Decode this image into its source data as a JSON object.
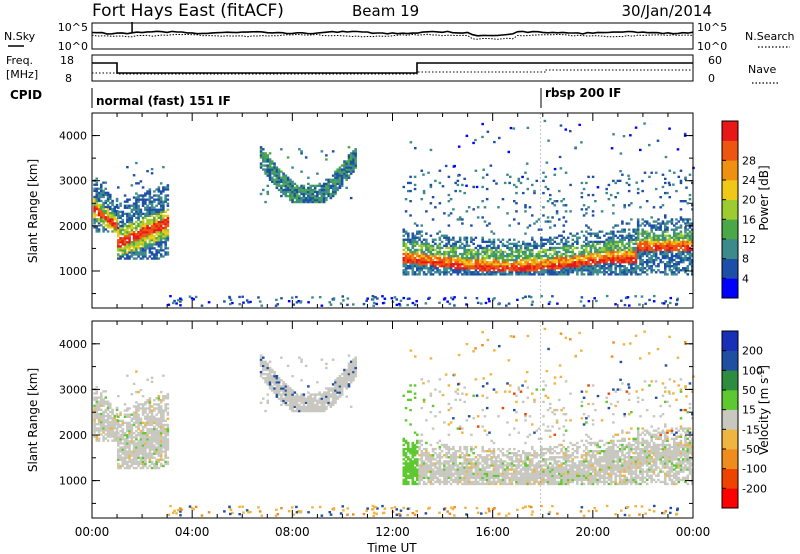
{
  "header": {
    "station": "Fort Hays East (fitACF)",
    "beam": "Beam 19",
    "date": "30/Jan/2014"
  },
  "side_labels": {
    "nsky": "N.Sky",
    "nsearch": "N.Search",
    "freq_line1": "Freq.",
    "freq_line2": "[MHz]",
    "nave": "Nave",
    "cpid": "CPID"
  },
  "strip_ticks": {
    "noise_top_left": "10^5",
    "noise_bottom_left": "10^0",
    "noise_top_right": "10^5",
    "noise_bottom_right": "10^0",
    "freq_top": "18",
    "freq_bottom": "8",
    "nave_top": "60",
    "nave_bottom": "0"
  },
  "cpid": {
    "mode1": "normal (fast) 151 IF",
    "mode2": "rbsp 200 IF"
  },
  "chart_data": [
    {
      "type": "heatmap",
      "title": "",
      "ylabel": "Slant Range [km]",
      "y_ticks": [
        "1000",
        "2000",
        "3000",
        "4000"
      ],
      "ylim": [
        180,
        4500
      ],
      "colorbar_label": "Power [dB]",
      "colorbar_ticks": [
        "4",
        "8",
        "12",
        "16",
        "20",
        "24",
        "28"
      ],
      "colorbar_range": [
        0,
        30
      ],
      "colors": [
        "#0000ff",
        "#1d4fa8",
        "#3c8a8a",
        "#4aa848",
        "#9ccc30",
        "#f0c818",
        "#f09010",
        "#ee5510",
        "#e81818"
      ]
    },
    {
      "type": "heatmap",
      "title": "",
      "ylabel": "Slant Range [km]",
      "y_ticks": [
        "1000",
        "2000",
        "3000",
        "4000"
      ],
      "ylim": [
        180,
        4500
      ],
      "colorbar_label": "Velocity [m s^-1]",
      "colorbar_ticks": [
        "200",
        "100",
        "50",
        "15",
        "-15",
        "-50",
        "-100",
        "-200"
      ],
      "colorbar_range": [
        -250,
        250
      ],
      "ground_scatter_color": "#c8c8c0",
      "colors": [
        "#ff0000",
        "#ee4400",
        "#f08c1e",
        "#f0b440",
        "#c8c8c0",
        "#5ec830",
        "#2e8c40",
        "#204ea0",
        "#1830b8"
      ]
    }
  ],
  "time_axis": {
    "xlabel": "Time UT",
    "x_ticks": [
      "00:00",
      "04:00",
      "08:00",
      "12:00",
      "16:00",
      "20:00",
      "00:00"
    ],
    "xlim_hours": [
      0,
      24
    ]
  },
  "scatter_regions": [
    {
      "t0": 0.05,
      "t1": 1.0,
      "r0": 1850,
      "r1": 3050,
      "core": 2350,
      "slope": -400,
      "band": 650
    },
    {
      "t0": 1.0,
      "t1": 3.0,
      "r0": 1250,
      "r1": 3400,
      "core": 1600,
      "slope": 450,
      "band": 900
    },
    {
      "t0": 6.7,
      "t1": 10.5,
      "r0": 2500,
      "r1": 3750,
      "core": 3100,
      "slope": 0,
      "band": 500
    },
    {
      "t0": 12.4,
      "t1": 24.0,
      "r0": 900,
      "r1": 3200,
      "core": 1300,
      "slope": 0,
      "band": 650
    }
  ]
}
